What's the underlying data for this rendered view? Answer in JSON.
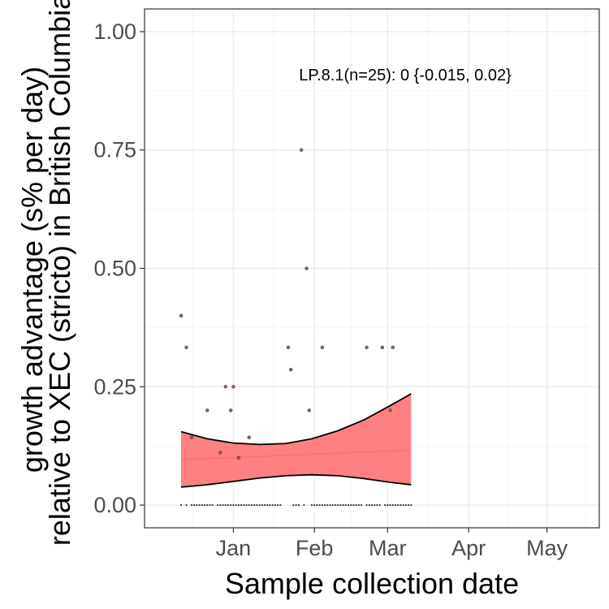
{
  "chart_data": {
    "type": "scatter",
    "xlabel": "Sample collection date",
    "ylabel_line1": "growth advantage (s% per day)",
    "ylabel_line2": "relative to XEC (stricto) in British Columbia",
    "annotation": "LP.8.1(n=25): 0 {-0.015, 0.02}",
    "x_ticks": [
      "Jan",
      "Feb",
      "Mar",
      "Apr",
      "May"
    ],
    "x_tick_dates": [
      "2025-01-01",
      "2025-02-01",
      "2025-03-01",
      "2025-04-01",
      "2025-05-01"
    ],
    "x_range": [
      "2024-11-28",
      "2025-05-21"
    ],
    "y_ticks": [
      "0.00",
      "0.25",
      "0.50",
      "0.75",
      "1.00"
    ],
    "y_tick_values": [
      0,
      0.25,
      0.5,
      0.75,
      1.0
    ],
    "ylim": [
      -0.048,
      1.048
    ],
    "grid": true,
    "points": [
      {
        "x": "2024-12-12",
        "y": 0.4
      },
      {
        "x": "2024-12-14",
        "y": 0.333
      },
      {
        "x": "2024-12-16",
        "y": 0.143
      },
      {
        "x": "2024-12-22",
        "y": 0.2
      },
      {
        "x": "2024-12-27",
        "y": 0.111
      },
      {
        "x": "2024-12-29",
        "y": 0.25
      },
      {
        "x": "2024-12-31",
        "y": 0.2
      },
      {
        "x": "2025-01-01",
        "y": 0.25
      },
      {
        "x": "2025-01-03",
        "y": 0.1
      },
      {
        "x": "2025-01-07",
        "y": 0.143
      },
      {
        "x": "2025-01-22",
        "y": 0.333
      },
      {
        "x": "2025-01-23",
        "y": 0.286
      },
      {
        "x": "2025-01-27",
        "y": 0.75
      },
      {
        "x": "2025-01-29",
        "y": 0.5
      },
      {
        "x": "2025-01-30",
        "y": 0.2
      },
      {
        "x": "2025-02-04",
        "y": 0.333
      },
      {
        "x": "2025-02-21",
        "y": 0.333
      },
      {
        "x": "2025-02-27",
        "y": 0.333
      },
      {
        "x": "2025-03-02",
        "y": 0.2
      },
      {
        "x": "2025-03-03",
        "y": 0.333
      }
    ],
    "zero_points_x": [
      "2024-12-12",
      "2024-12-14",
      "2024-12-16",
      "2024-12-17",
      "2024-12-18",
      "2024-12-19",
      "2024-12-20",
      "2024-12-21",
      "2024-12-22",
      "2024-12-23",
      "2024-12-24",
      "2024-12-26",
      "2024-12-27",
      "2024-12-28",
      "2024-12-29",
      "2024-12-30",
      "2024-12-31",
      "2025-01-01",
      "2025-01-02",
      "2025-01-03",
      "2025-01-04",
      "2025-01-05",
      "2025-01-06",
      "2025-01-07",
      "2025-01-08",
      "2025-01-09",
      "2025-01-10",
      "2025-01-11",
      "2025-01-12",
      "2025-01-13",
      "2025-01-14",
      "2025-01-15",
      "2025-01-16",
      "2025-01-17",
      "2025-01-18",
      "2025-01-19",
      "2025-01-24",
      "2025-01-25",
      "2025-01-26",
      "2025-01-28",
      "2025-01-31",
      "2025-02-01",
      "2025-02-02",
      "2025-02-03",
      "2025-02-04",
      "2025-02-05",
      "2025-02-06",
      "2025-02-07",
      "2025-02-08",
      "2025-02-09",
      "2025-02-10",
      "2025-02-11",
      "2025-02-12",
      "2025-02-13",
      "2025-02-14",
      "2025-02-15",
      "2025-02-16",
      "2025-02-17",
      "2025-02-18",
      "2025-02-19",
      "2025-02-21",
      "2025-02-22",
      "2025-02-23",
      "2025-02-24",
      "2025-02-25",
      "2025-02-26",
      "2025-02-28",
      "2025-03-01",
      "2025-03-02",
      "2025-03-03",
      "2025-03-04",
      "2025-03-05",
      "2025-03-06",
      "2025-03-07",
      "2025-03-08",
      "2025-03-09",
      "2025-03-10"
    ],
    "fit_line": {
      "x": [
        "2024-12-12",
        "2025-03-10"
      ],
      "y": [
        0.096,
        0.116
      ]
    },
    "ribbon": {
      "x": [
        "2024-12-12",
        "2024-12-22",
        "2025-01-01",
        "2025-01-11",
        "2025-01-21",
        "2025-01-31",
        "2025-02-10",
        "2025-02-20",
        "2025-03-02",
        "2025-03-10"
      ],
      "upper": [
        0.155,
        0.14,
        0.131,
        0.128,
        0.13,
        0.14,
        0.157,
        0.18,
        0.21,
        0.235
      ],
      "lower": [
        0.038,
        0.043,
        0.05,
        0.057,
        0.062,
        0.064,
        0.062,
        0.056,
        0.048,
        0.043
      ]
    },
    "colors": {
      "ribbon_fill": "#ff8080",
      "ribbon_edge": "#000000",
      "fit_line": "#f8766d",
      "point_fill": "#c06060",
      "point_edge": "#333333",
      "grid_major": "#ebebeb",
      "grid_minor": "#f5f5f5",
      "panel_border": "#333333"
    }
  }
}
